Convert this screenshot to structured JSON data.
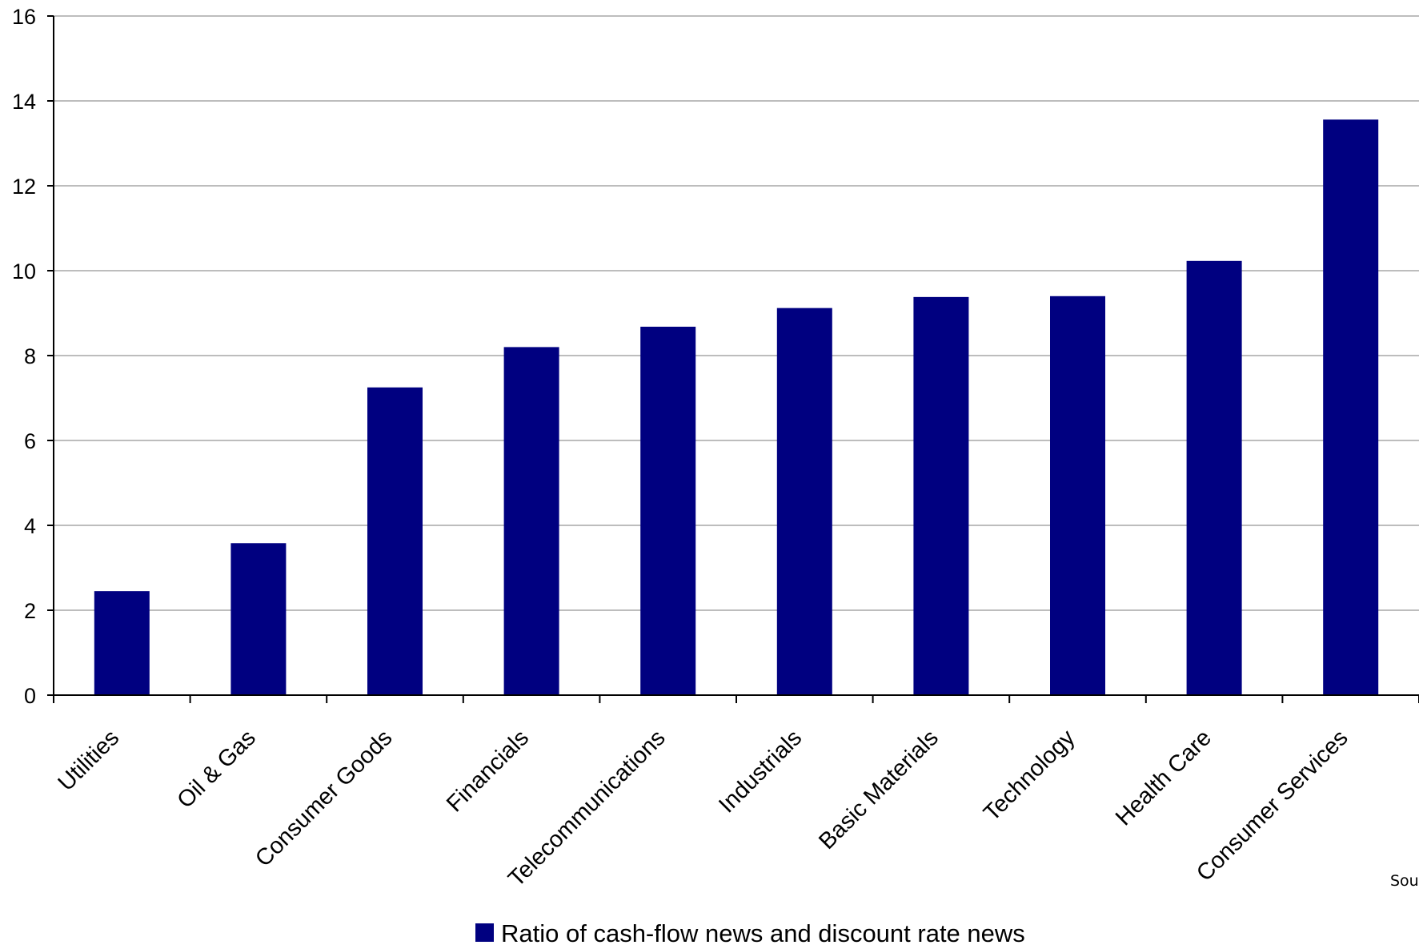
{
  "chart_data": {
    "type": "bar",
    "categories": [
      "Utilities",
      "Oil & Gas",
      "Consumer Goods",
      "Financials",
      "Telecommunications",
      "Industrials",
      "Basic Materials",
      "Technology",
      "Health Care",
      "Consumer Services"
    ],
    "series": [
      {
        "name": "Ratio of cash-flow news and discount rate news",
        "values": [
          2.45,
          3.58,
          7.25,
          8.2,
          8.68,
          9.12,
          9.38,
          9.4,
          10.23,
          13.56
        ],
        "color": "#000080"
      }
    ],
    "yticks": [
      "0",
      "2",
      "4",
      "6",
      "8",
      "10",
      "12",
      "14",
      "16"
    ],
    "ylim": [
      0,
      16
    ],
    "grid": true,
    "legend": "bottom",
    "source_fragment": "Sou"
  }
}
